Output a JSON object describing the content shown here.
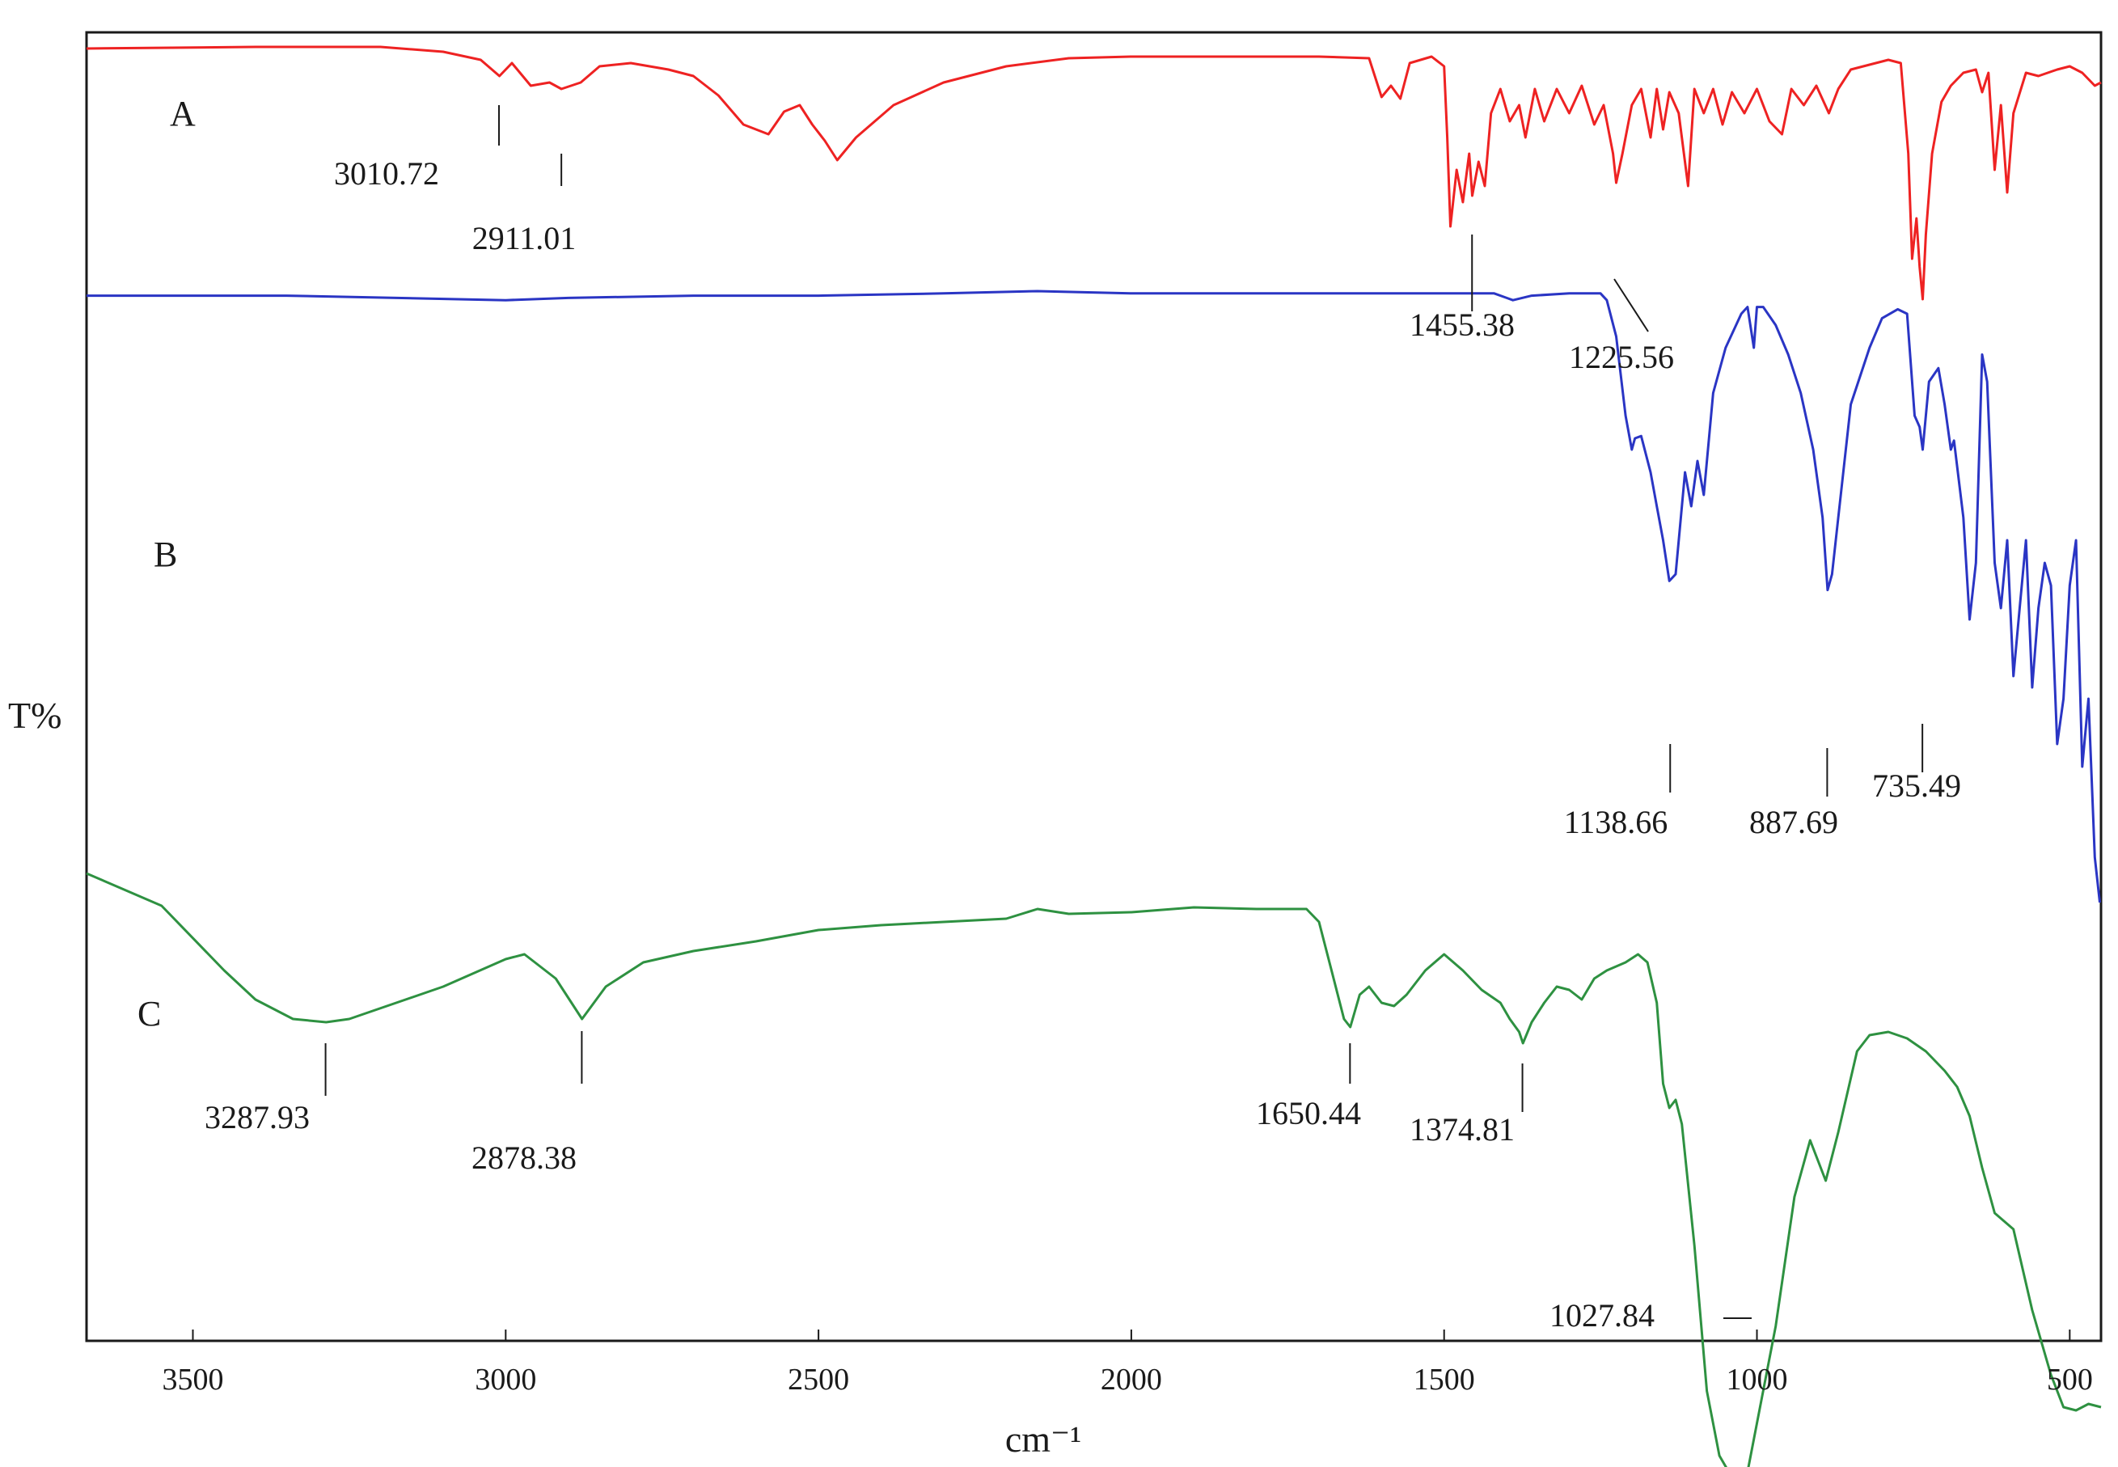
{
  "chart_data": {
    "type": "line",
    "title": "",
    "xlabel": "cm⁻¹",
    "ylabel": "T%",
    "xlim": [
      3670,
      450
    ],
    "x_reversed": true,
    "x_ticks": [
      3500,
      3000,
      2500,
      2000,
      1500,
      1000,
      500
    ],
    "grid": false,
    "legend": "none",
    "series": [
      {
        "name": "A",
        "color": "#ee2222",
        "points": [
          [
            3670,
            0.95
          ],
          [
            3400,
            0.96
          ],
          [
            3200,
            0.96
          ],
          [
            3100,
            0.93
          ],
          [
            3040,
            0.88
          ],
          [
            3010,
            0.78
          ],
          [
            2990,
            0.86
          ],
          [
            2960,
            0.72
          ],
          [
            2930,
            0.74
          ],
          [
            2911,
            0.7
          ],
          [
            2880,
            0.74
          ],
          [
            2850,
            0.84
          ],
          [
            2800,
            0.86
          ],
          [
            2740,
            0.82
          ],
          [
            2700,
            0.78
          ],
          [
            2660,
            0.66
          ],
          [
            2620,
            0.48
          ],
          [
            2580,
            0.42
          ],
          [
            2555,
            0.56
          ],
          [
            2530,
            0.6
          ],
          [
            2510,
            0.48
          ],
          [
            2490,
            0.38
          ],
          [
            2470,
            0.26
          ],
          [
            2440,
            0.4
          ],
          [
            2380,
            0.6
          ],
          [
            2300,
            0.74
          ],
          [
            2200,
            0.84
          ],
          [
            2100,
            0.89
          ],
          [
            2000,
            0.9
          ],
          [
            1900,
            0.9
          ],
          [
            1800,
            0.9
          ],
          [
            1700,
            0.9
          ],
          [
            1620,
            0.89
          ],
          [
            1600,
            0.65
          ],
          [
            1585,
            0.72
          ],
          [
            1570,
            0.64
          ],
          [
            1555,
            0.86
          ],
          [
            1520,
            0.9
          ],
          [
            1500,
            0.84
          ],
          [
            1495,
            0.4
          ],
          [
            1490,
            -0.15
          ],
          [
            1480,
            0.2
          ],
          [
            1470,
            0.0
          ],
          [
            1460,
            0.3
          ],
          [
            1455,
            0.04
          ],
          [
            1445,
            0.25
          ],
          [
            1435,
            0.1
          ],
          [
            1425,
            0.55
          ],
          [
            1410,
            0.7
          ],
          [
            1395,
            0.5
          ],
          [
            1380,
            0.6
          ],
          [
            1370,
            0.4
          ],
          [
            1355,
            0.7
          ],
          [
            1340,
            0.5
          ],
          [
            1320,
            0.7
          ],
          [
            1300,
            0.55
          ],
          [
            1280,
            0.72
          ],
          [
            1260,
            0.48
          ],
          [
            1245,
            0.6
          ],
          [
            1230,
            0.3
          ],
          [
            1225,
            0.12
          ],
          [
            1215,
            0.3
          ],
          [
            1200,
            0.6
          ],
          [
            1185,
            0.7
          ],
          [
            1170,
            0.4
          ],
          [
            1160,
            0.7
          ],
          [
            1150,
            0.45
          ],
          [
            1140,
            0.68
          ],
          [
            1125,
            0.55
          ],
          [
            1110,
            0.1
          ],
          [
            1100,
            0.7
          ],
          [
            1085,
            0.55
          ],
          [
            1070,
            0.7
          ],
          [
            1055,
            0.48
          ],
          [
            1040,
            0.68
          ],
          [
            1020,
            0.55
          ],
          [
            1000,
            0.7
          ],
          [
            980,
            0.5
          ],
          [
            960,
            0.42
          ],
          [
            945,
            0.7
          ],
          [
            925,
            0.6
          ],
          [
            905,
            0.72
          ],
          [
            885,
            0.55
          ],
          [
            870,
            0.7
          ],
          [
            850,
            0.82
          ],
          [
            830,
            0.84
          ],
          [
            810,
            0.86
          ],
          [
            790,
            0.88
          ],
          [
            770,
            0.86
          ],
          [
            758,
            0.3
          ],
          [
            752,
            -0.35
          ],
          [
            745,
            -0.1
          ],
          [
            740,
            -0.4
          ],
          [
            735,
            -0.6
          ],
          [
            730,
            -0.2
          ],
          [
            720,
            0.3
          ],
          [
            705,
            0.62
          ],
          [
            690,
            0.72
          ],
          [
            670,
            0.8
          ],
          [
            650,
            0.82
          ],
          [
            640,
            0.68
          ],
          [
            630,
            0.8
          ],
          [
            620,
            0.2
          ],
          [
            610,
            0.6
          ],
          [
            600,
            0.06
          ],
          [
            590,
            0.55
          ],
          [
            570,
            0.8
          ],
          [
            550,
            0.78
          ],
          [
            520,
            0.82
          ],
          [
            500,
            0.84
          ],
          [
            480,
            0.8
          ],
          [
            460,
            0.72
          ],
          [
            450,
            0.74
          ]
        ]
      },
      {
        "name": "B",
        "color": "#2a35c4",
        "points": [
          [
            3670,
            0.98
          ],
          [
            3500,
            0.98
          ],
          [
            3350,
            0.98
          ],
          [
            3000,
            0.96
          ],
          [
            2900,
            0.97
          ],
          [
            2700,
            0.98
          ],
          [
            2500,
            0.98
          ],
          [
            2300,
            0.99
          ],
          [
            2150,
            1.0
          ],
          [
            2000,
            0.99
          ],
          [
            1800,
            0.99
          ],
          [
            1600,
            0.99
          ],
          [
            1420,
            0.99
          ],
          [
            1400,
            0.97
          ],
          [
            1390,
            0.96
          ],
          [
            1360,
            0.98
          ],
          [
            1300,
            0.99
          ],
          [
            1250,
            0.99
          ],
          [
            1240,
            0.96
          ],
          [
            1225,
            0.8
          ],
          [
            1210,
            0.45
          ],
          [
            1200,
            0.3
          ],
          [
            1195,
            0.35
          ],
          [
            1185,
            0.36
          ],
          [
            1170,
            0.2
          ],
          [
            1160,
            0.05
          ],
          [
            1150,
            -0.1
          ],
          [
            1140,
            -0.28
          ],
          [
            1130,
            -0.25
          ],
          [
            1115,
            0.2
          ],
          [
            1105,
            0.05
          ],
          [
            1095,
            0.25
          ],
          [
            1085,
            0.1
          ],
          [
            1070,
            0.55
          ],
          [
            1050,
            0.75
          ],
          [
            1025,
            0.9
          ],
          [
            1015,
            0.93
          ],
          [
            1005,
            0.75
          ],
          [
            1000,
            0.93
          ],
          [
            990,
            0.93
          ],
          [
            970,
            0.85
          ],
          [
            950,
            0.72
          ],
          [
            930,
            0.55
          ],
          [
            910,
            0.3
          ],
          [
            895,
            0.0
          ],
          [
            887,
            -0.32
          ],
          [
            880,
            -0.25
          ],
          [
            870,
            0.0
          ],
          [
            850,
            0.5
          ],
          [
            820,
            0.75
          ],
          [
            800,
            0.88
          ],
          [
            775,
            0.92
          ],
          [
            760,
            0.9
          ],
          [
            748,
            0.45
          ],
          [
            740,
            0.4
          ],
          [
            735,
            0.3
          ],
          [
            725,
            0.6
          ],
          [
            710,
            0.66
          ],
          [
            700,
            0.5
          ],
          [
            690,
            0.3
          ],
          [
            685,
            0.34
          ],
          [
            670,
            0.0
          ],
          [
            660,
            -0.45
          ],
          [
            650,
            -0.2
          ],
          [
            640,
            0.72
          ],
          [
            632,
            0.6
          ],
          [
            620,
            -0.2
          ],
          [
            610,
            -0.4
          ],
          [
            600,
            -0.1
          ],
          [
            590,
            -0.7
          ],
          [
            580,
            -0.4
          ],
          [
            570,
            -0.1
          ],
          [
            560,
            -0.75
          ],
          [
            550,
            -0.4
          ],
          [
            540,
            -0.2
          ],
          [
            530,
            -0.3
          ],
          [
            520,
            -1.0
          ],
          [
            510,
            -0.8
          ],
          [
            500,
            -0.3
          ],
          [
            490,
            -0.1
          ],
          [
            480,
            -1.1
          ],
          [
            470,
            -0.8
          ],
          [
            460,
            -1.5
          ],
          [
            452,
            -1.7
          ]
        ]
      },
      {
        "name": "C",
        "color": "#2e9141",
        "points": [
          [
            3670,
            1.0
          ],
          [
            3550,
            0.8
          ],
          [
            3450,
            0.4
          ],
          [
            3400,
            0.22
          ],
          [
            3340,
            0.1
          ],
          [
            3287,
            0.08
          ],
          [
            3250,
            0.1
          ],
          [
            3100,
            0.3
          ],
          [
            3000,
            0.47
          ],
          [
            2970,
            0.5
          ],
          [
            2920,
            0.35
          ],
          [
            2878,
            0.1
          ],
          [
            2840,
            0.3
          ],
          [
            2780,
            0.45
          ],
          [
            2700,
            0.52
          ],
          [
            2600,
            0.58
          ],
          [
            2500,
            0.65
          ],
          [
            2400,
            0.68
          ],
          [
            2300,
            0.7
          ],
          [
            2200,
            0.72
          ],
          [
            2150,
            0.78
          ],
          [
            2100,
            0.75
          ],
          [
            2000,
            0.76
          ],
          [
            1900,
            0.79
          ],
          [
            1800,
            0.78
          ],
          [
            1720,
            0.78
          ],
          [
            1700,
            0.7
          ],
          [
            1680,
            0.4
          ],
          [
            1660,
            0.1
          ],
          [
            1650,
            0.05
          ],
          [
            1635,
            0.25
          ],
          [
            1620,
            0.3
          ],
          [
            1600,
            0.2
          ],
          [
            1580,
            0.18
          ],
          [
            1560,
            0.25
          ],
          [
            1530,
            0.4
          ],
          [
            1500,
            0.5
          ],
          [
            1470,
            0.4
          ],
          [
            1440,
            0.28
          ],
          [
            1410,
            0.2
          ],
          [
            1395,
            0.1
          ],
          [
            1380,
            0.02
          ],
          [
            1374,
            -0.05
          ],
          [
            1360,
            0.08
          ],
          [
            1340,
            0.2
          ],
          [
            1320,
            0.3
          ],
          [
            1300,
            0.28
          ],
          [
            1280,
            0.22
          ],
          [
            1260,
            0.35
          ],
          [
            1240,
            0.4
          ],
          [
            1210,
            0.45
          ],
          [
            1190,
            0.5
          ],
          [
            1175,
            0.45
          ],
          [
            1160,
            0.2
          ],
          [
            1150,
            -0.3
          ],
          [
            1140,
            -0.45
          ],
          [
            1130,
            -0.4
          ],
          [
            1120,
            -0.55
          ],
          [
            1100,
            -1.3
          ],
          [
            1080,
            -2.2
          ],
          [
            1060,
            -2.6
          ],
          [
            1045,
            -2.7
          ],
          [
            1035,
            -2.72
          ],
          [
            1027,
            -2.85
          ],
          [
            1015,
            -2.7
          ],
          [
            1000,
            -2.4
          ],
          [
            970,
            -1.8
          ],
          [
            940,
            -1.0
          ],
          [
            915,
            -0.65
          ],
          [
            890,
            -0.9
          ],
          [
            870,
            -0.6
          ],
          [
            840,
            -0.1
          ],
          [
            820,
            0.0
          ],
          [
            790,
            0.02
          ],
          [
            760,
            -0.02
          ],
          [
            730,
            -0.1
          ],
          [
            700,
            -0.22
          ],
          [
            680,
            -0.32
          ],
          [
            660,
            -0.5
          ],
          [
            640,
            -0.82
          ],
          [
            620,
            -1.1
          ],
          [
            590,
            -1.2
          ],
          [
            560,
            -1.7
          ],
          [
            530,
            -2.1
          ],
          [
            510,
            -2.3
          ],
          [
            490,
            -2.32
          ],
          [
            470,
            -2.28
          ],
          [
            450,
            -2.3
          ]
        ]
      }
    ],
    "annotations": [
      {
        "series": "A",
        "label": "3010.72",
        "x": 3010.72
      },
      {
        "series": "A",
        "label": "2911.01",
        "x": 2911.01
      },
      {
        "series": "A",
        "label": "1455.38",
        "x": 1455.38
      },
      {
        "series": "A",
        "label": "1225.56",
        "x": 1225.56
      },
      {
        "series": "B",
        "label": "1138.66",
        "x": 1138.66
      },
      {
        "series": "B",
        "label": "887.69",
        "x": 887.69
      },
      {
        "series": "B",
        "label": "735.49",
        "x": 735.49
      },
      {
        "series": "C",
        "label": "3287.93",
        "x": 3287.93
      },
      {
        "series": "C",
        "label": "2878.38",
        "x": 2878.38
      },
      {
        "series": "C",
        "label": "1650.44",
        "x": 1650.44
      },
      {
        "series": "C",
        "label": "1374.81",
        "x": 1374.81
      },
      {
        "series": "C",
        "label": "1027.84",
        "x": 1027.84
      }
    ]
  }
}
